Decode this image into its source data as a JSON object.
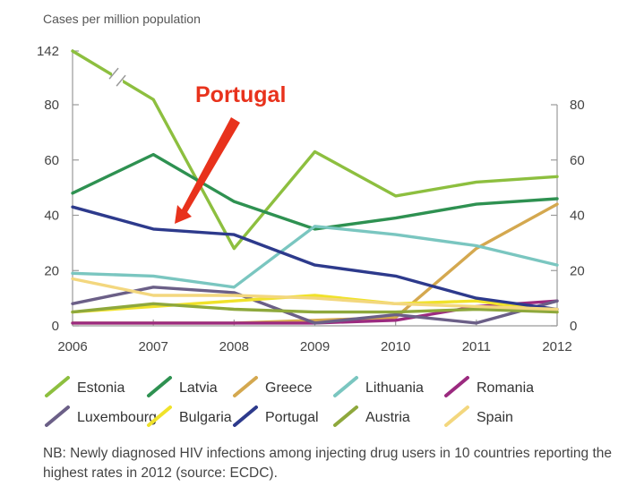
{
  "chart_data": {
    "type": "line",
    "ylabel": "Cases per million population",
    "x": [
      2006,
      2007,
      2008,
      2009,
      2010,
      2011,
      2012
    ],
    "x_ticks": [
      "2006",
      "2007",
      "2008",
      "2009",
      "2010",
      "2011",
      "2012"
    ],
    "y_ticks_left": [
      "0",
      "20",
      "40",
      "60",
      "80",
      "142"
    ],
    "y_ticks_right": [
      "0",
      "20",
      "40",
      "60",
      "80"
    ],
    "ylim": [
      0,
      80
    ],
    "y_break": {
      "top_label": "142",
      "note": "axis break between 80 and 142"
    },
    "grid": false,
    "legend_position": "bottom",
    "series": [
      {
        "name": "Estonia",
        "color": "#8dbf3f",
        "values": [
          142,
          86,
          28,
          63,
          47,
          52,
          54
        ]
      },
      {
        "name": "Latvia",
        "color": "#2e9151",
        "values": [
          48,
          62,
          45,
          35,
          39,
          44,
          46
        ]
      },
      {
        "name": "Greece",
        "color": "#d4a84f",
        "values": [
          1,
          1,
          1,
          2,
          3,
          28,
          44
        ]
      },
      {
        "name": "Lithuania",
        "color": "#7ac6c0",
        "values": [
          19,
          18,
          14,
          36,
          33,
          29,
          22
        ]
      },
      {
        "name": "Romania",
        "color": "#9b2a7f",
        "values": [
          1,
          1,
          1,
          1,
          2,
          7,
          9
        ]
      },
      {
        "name": "Luxembourg",
        "color": "#6b5f87",
        "values": [
          8,
          14,
          12,
          1,
          4,
          1,
          9
        ]
      },
      {
        "name": "Bulgaria",
        "color": "#f0e22a",
        "values": [
          5,
          7,
          9,
          11,
          8,
          9,
          5
        ]
      },
      {
        "name": "Portugal",
        "color": "#2d3a8c",
        "values": [
          43,
          35,
          33,
          22,
          18,
          10,
          6
        ]
      },
      {
        "name": "Austria",
        "color": "#8ea83c",
        "values": [
          5,
          8,
          6,
          5,
          5,
          6,
          5
        ]
      },
      {
        "name": "Spain",
        "color": "#f3d77e",
        "values": [
          17,
          11,
          11,
          10,
          8,
          7,
          6
        ]
      }
    ],
    "annotations": [
      {
        "text": "Portugal",
        "color": "#e8321c",
        "points_to_series": "Portugal",
        "points_to_x": 2007
      }
    ]
  },
  "footnote": "NB: Newly diagnosed HIV infections among injecting drug users in 10 countries reporting the highest rates in 2012 (source: ECDC)."
}
